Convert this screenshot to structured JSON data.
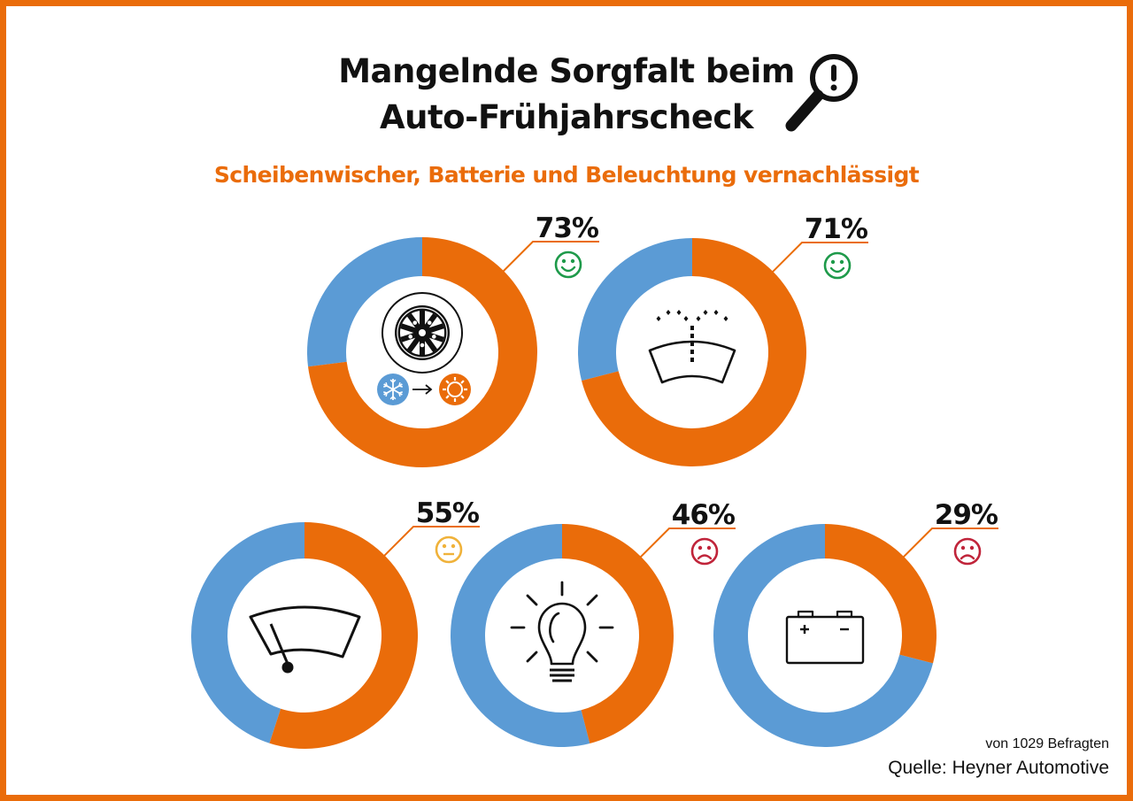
{
  "header": {
    "title_line1": "Mangelnde Sorgfalt beim",
    "title_line2": "Auto-Frühjahrscheck",
    "title_icon": "magnifier-exclamation-icon",
    "subtitle": "Scheibenwischer, Batterie und Beleuchtung vernachlässigt"
  },
  "colors": {
    "border": "#ea6c0a",
    "checked": "#ea6c0a",
    "not_checked": "#5b9bd5",
    "happy": "#1e9a4a",
    "neutral": "#f0b23a",
    "sad": "#c0243a"
  },
  "chart_data": {
    "type": "pie",
    "subtype": "donut",
    "title": "Mangelnde Sorgfalt beim Auto-Frühjahrscheck",
    "subtitle": "Scheibenwischer, Batterie und Beleuchtung vernachlässigt",
    "series": [
      {
        "name": "Reifenwechsel (Winter → Sommer)",
        "icon": "tire-season-change-icon",
        "value": 73,
        "label": "73%",
        "mood": "happy",
        "mood_icon": "happy-face-icon"
      },
      {
        "name": "Scheibenwaschanlage",
        "icon": "windshield-washer-icon",
        "value": 71,
        "label": "71%",
        "mood": "happy",
        "mood_icon": "happy-face-icon"
      },
      {
        "name": "Scheibenwischer",
        "icon": "windshield-wiper-icon",
        "value": 55,
        "label": "55%",
        "mood": "neutral",
        "mood_icon": "neutral-face-icon"
      },
      {
        "name": "Beleuchtung",
        "icon": "light-bulb-icon",
        "value": 46,
        "label": "46%",
        "mood": "sad",
        "mood_icon": "sad-face-icon"
      },
      {
        "name": "Batterie",
        "icon": "battery-icon",
        "value": 29,
        "label": "29%",
        "mood": "sad",
        "mood_icon": "sad-face-icon"
      }
    ],
    "unit": "%",
    "total": 100
  },
  "footer": {
    "respondents": "von 1029 Befragten",
    "source": "Quelle: Heyner Automotive"
  }
}
